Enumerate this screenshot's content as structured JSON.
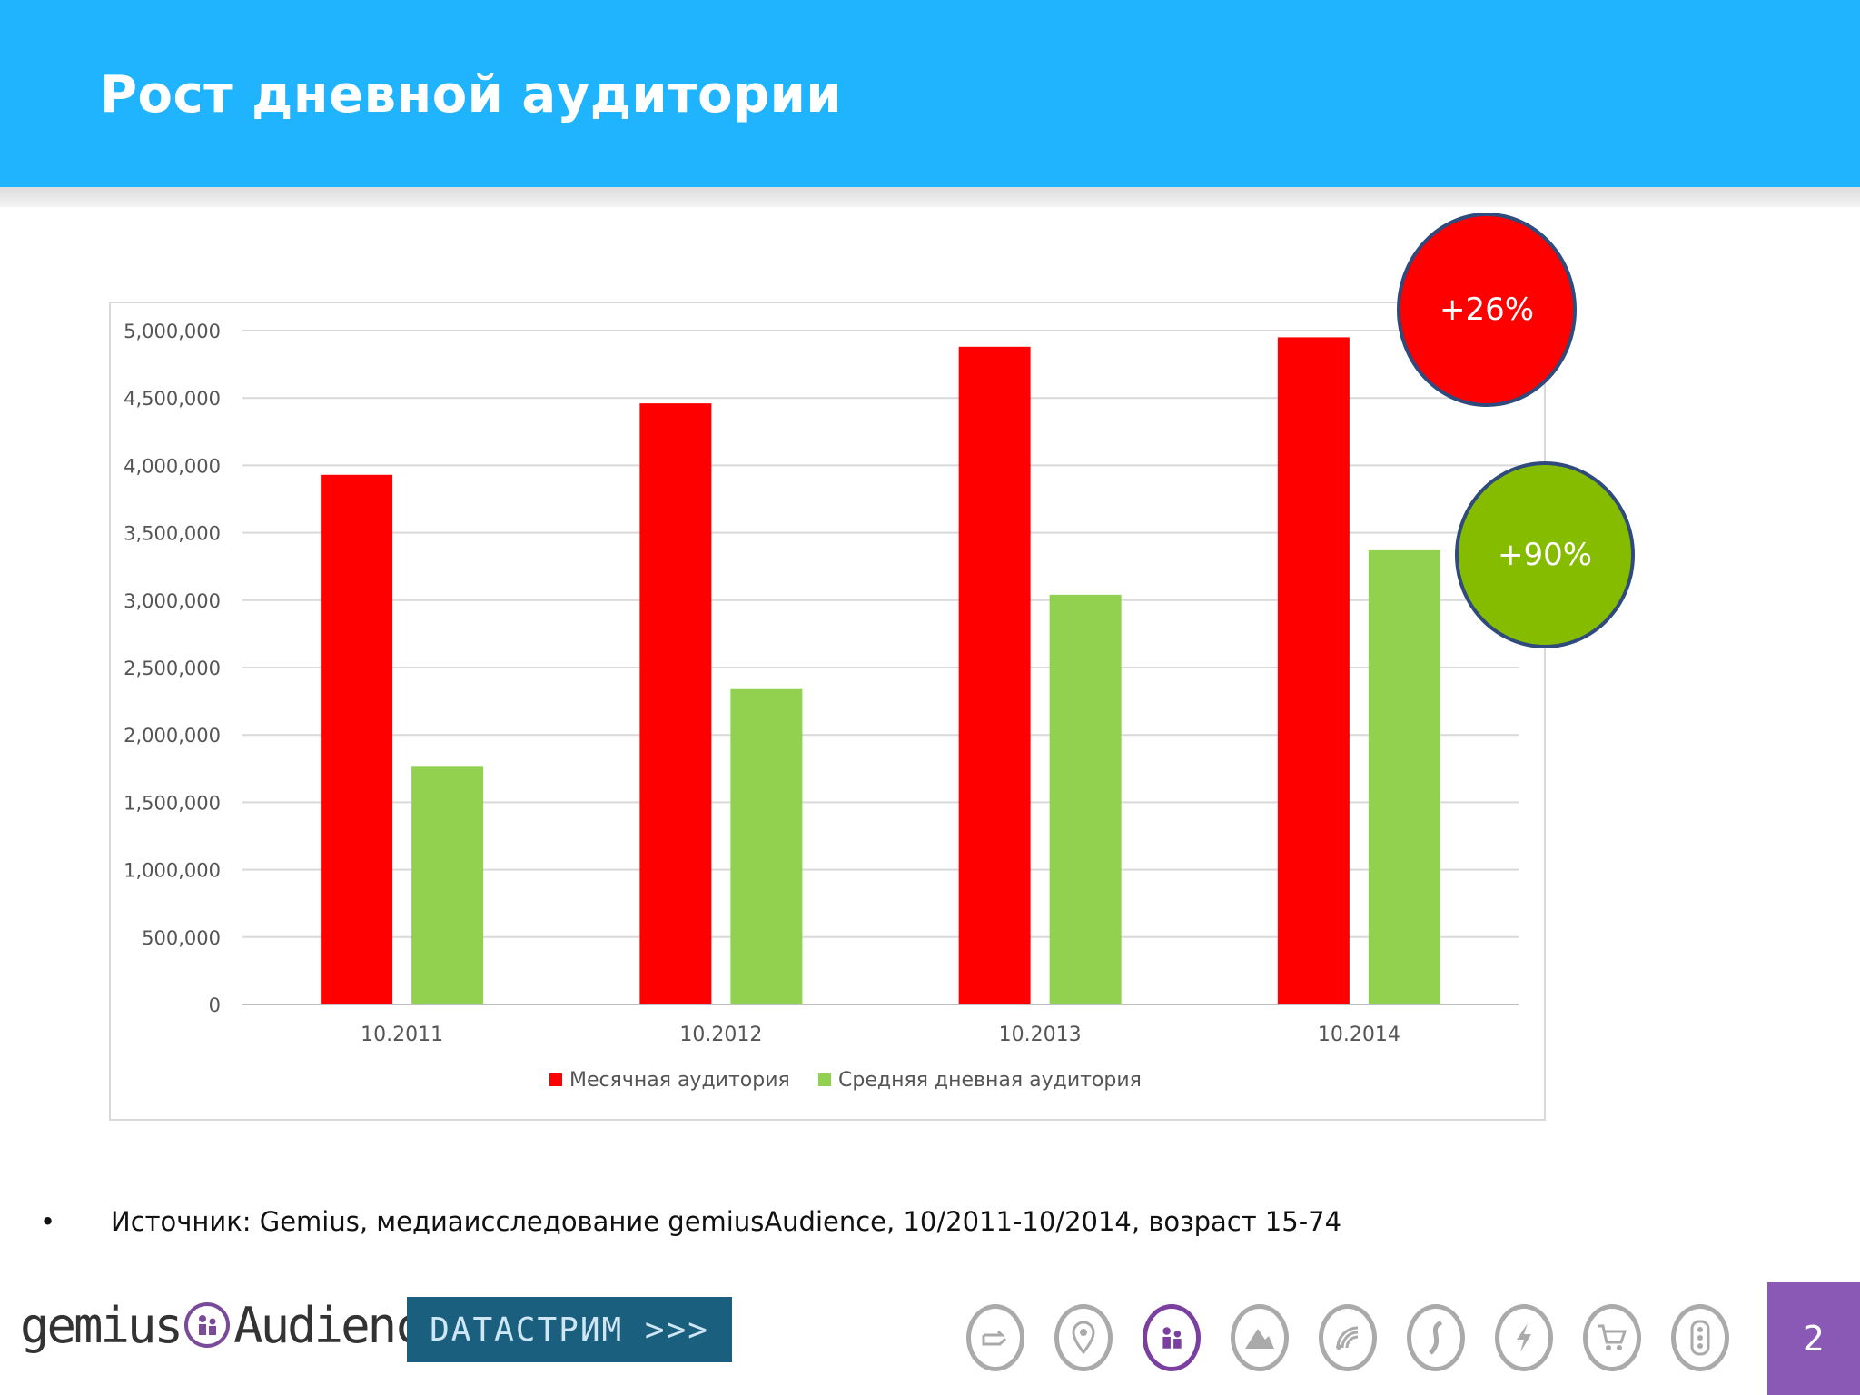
{
  "header": {
    "title": "Рост дневной аудитории"
  },
  "chart_data": {
    "type": "bar",
    "title": "",
    "xlabel": "",
    "ylabel": "",
    "categories": [
      "10.2011",
      "10.2012",
      "10.2013",
      "10.2014"
    ],
    "series": [
      {
        "name": "Месячная аудитория",
        "color": "#ff0000",
        "values": [
          3930000,
          4460000,
          4880000,
          4950000
        ]
      },
      {
        "name": "Средняя дневная аудитория",
        "color": "#92d050",
        "values": [
          1770000,
          2340000,
          3040000,
          3370000
        ]
      }
    ],
    "ylim": [
      0,
      5000000
    ],
    "yticks": [
      0,
      500000,
      1000000,
      1500000,
      2000000,
      2500000,
      3000000,
      3500000,
      4000000,
      4500000,
      5000000
    ],
    "ytick_labels": [
      "0",
      "500,000",
      "1,000,000",
      "1,500,000",
      "2,000,000",
      "2,500,000",
      "3,000,000",
      "3,500,000",
      "4,000,000",
      "4,500,000",
      "5,000,000"
    ],
    "grid": true,
    "legend": "bottom"
  },
  "badges": {
    "monthly_growth": "+26%",
    "daily_growth": "+90%",
    "monthly_color": "#ff0000",
    "daily_color": "#85bc00"
  },
  "source": {
    "bullet": "•",
    "text": "Источник: Gemius, медиаисследование gemiusAudience,  10/2011-10/2014, возраст 15-74"
  },
  "footer": {
    "logo_gemius_left": "gemius",
    "logo_gemius_right": "Audience",
    "logo_datastream": "DATACTPИM >>>",
    "page_number": "2",
    "icons": [
      "pointer-icon",
      "location-pin-icon",
      "audience-icon",
      "mountain-icon",
      "wifi-icon",
      "swirl-icon",
      "lightning-icon",
      "cart-icon",
      "traffic-light-icon"
    ]
  }
}
